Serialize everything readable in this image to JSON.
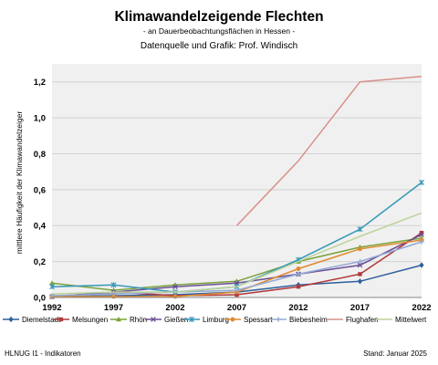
{
  "chart_data": {
    "type": "line",
    "title": "Klimawandelzeigende Flechten",
    "subtitle": "- an Dauerbeobachtungsflächen in Hessen -",
    "source": "Datenquelle  und Grafik: Prof. Windisch",
    "xlabel": "",
    "ylabel": "mittlere Häufigkeit der Klimawandelzeiger",
    "ylim": [
      0,
      1.3
    ],
    "yticks": [
      "0,0",
      "0,2",
      "0,4",
      "0,6",
      "0,8",
      "1,0",
      "1,2"
    ],
    "categories": [
      "1992",
      "1997",
      "2002",
      "2007",
      "2012",
      "2017",
      "2022"
    ],
    "grid": true,
    "legend_position": "bottom",
    "series": [
      {
        "name": "Diemelstadt",
        "color": "#2e5f9e",
        "marker": "diamond",
        "values": [
          0.005,
          0.01,
          0.015,
          0.03,
          0.07,
          0.09,
          0.18
        ]
      },
      {
        "name": "Melsungen",
        "color": "#b03a3a",
        "marker": "square",
        "values": [
          0.005,
          0.03,
          0.01,
          0.015,
          0.06,
          0.13,
          0.36
        ]
      },
      {
        "name": "Rhön",
        "color": "#7aa33a",
        "marker": "triangle",
        "values": [
          0.08,
          0.04,
          0.07,
          0.09,
          0.2,
          0.28,
          0.33
        ]
      },
      {
        "name": "Gießen",
        "color": "#6b4f96",
        "marker": "x",
        "values": [
          0.005,
          0.03,
          0.06,
          0.08,
          0.13,
          0.18,
          0.35
        ]
      },
      {
        "name": "Limburg",
        "color": "#3598b8",
        "marker": "star",
        "values": [
          0.06,
          0.07,
          0.03,
          0.06,
          0.21,
          0.38,
          0.64
        ]
      },
      {
        "name": "Spessart",
        "color": "#e08a2f",
        "marker": "circle",
        "values": [
          0.005,
          0.005,
          0.005,
          0.03,
          0.16,
          0.27,
          0.32
        ]
      },
      {
        "name": "Biebesheim",
        "color": "#93a9d4",
        "marker": "plus",
        "values": [
          0.01,
          0.02,
          0.03,
          0.04,
          0.13,
          0.2,
          0.31
        ]
      },
      {
        "name": "Flughafen",
        "color": "#d9908a",
        "marker": "none",
        "values": [
          null,
          null,
          null,
          0.4,
          0.76,
          1.2,
          1.23
        ]
      },
      {
        "name": "Mittelwert",
        "color": "#bcd39a",
        "marker": "none",
        "values": [
          0.02,
          0.03,
          0.03,
          0.06,
          0.2,
          0.34,
          0.47
        ]
      }
    ]
  },
  "footer": {
    "left": "HLNUG I1 - Indikatoren",
    "right": "Stand: Januar 2025"
  }
}
